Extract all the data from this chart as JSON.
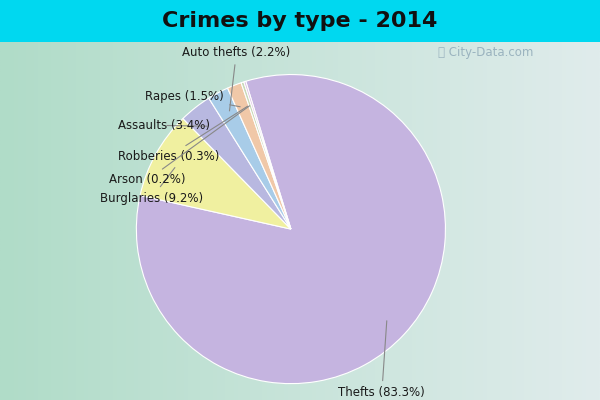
{
  "title": "Crimes by type - 2014",
  "slices": [
    {
      "label": "Thefts",
      "pct": 83.3,
      "color": "#c5b4e0",
      "label_text": "Thefts (83.3%)"
    },
    {
      "label": "Burglaries",
      "pct": 9.2,
      "color": "#f0f0a0",
      "label_text": "Burglaries (9.2%)"
    },
    {
      "label": "Assaults",
      "pct": 3.4,
      "color": "#b8b8e0",
      "label_text": "Assaults (3.4%)"
    },
    {
      "label": "Auto thefts",
      "pct": 2.2,
      "color": "#a8cce8",
      "label_text": "Auto thefts (2.2%)"
    },
    {
      "label": "Rapes",
      "pct": 1.5,
      "color": "#f0c8a8",
      "label_text": "Rapes (1.5%)"
    },
    {
      "label": "Robberies",
      "pct": 0.3,
      "color": "#c8d8b8",
      "label_text": "Robberies (0.3%)"
    },
    {
      "label": "Arson",
      "pct": 0.2,
      "color": "#d8b8e0",
      "label_text": "Arson (0.2%)"
    }
  ],
  "startangle": 107,
  "top_bar_color": "#00d8f0",
  "bg_left_color": "#b0dcc8",
  "bg_right_color": "#e0ecec",
  "title_fontsize": 16,
  "label_fontsize": 8.5,
  "watermark": "ⓘ City-Data.com"
}
